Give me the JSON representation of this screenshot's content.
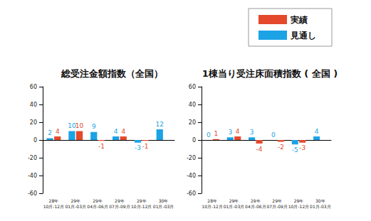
{
  "chart_data": [
    {
      "type": "bar",
      "title": "総受注金額指数（全国）",
      "categories": [
        "28年\n10月-12月",
        "29年\n01月-03月",
        "29年\n04月-06月",
        "29年\n07月-09月",
        "29年\n10月-12月",
        "30年\n01月-03月"
      ],
      "series": [
        {
          "name": "見通し",
          "color": "#1ca3e6",
          "values": [
            2,
            10,
            9,
            4,
            -3,
            12
          ]
        },
        {
          "name": "実績",
          "color": "#e5492c",
          "values": [
            4,
            10,
            -1,
            4,
            -1,
            null
          ]
        }
      ],
      "ylim": [
        -60,
        60
      ],
      "yticks": [
        -60,
        -40,
        -20,
        0,
        20,
        40,
        60
      ],
      "grid": false,
      "data_labels": true,
      "legend": "top-right"
    },
    {
      "type": "bar",
      "title": "1棟当り受注床面積指数 ( 全国 )",
      "categories": [
        "28年\n10月-12月",
        "29年\n01月-03月",
        "29年\n04月-06月",
        "29年\n07月-09月",
        "29年\n10月-12月",
        "30年\n01月-03月"
      ],
      "series": [
        {
          "name": "見通し",
          "color": "#1ca3e6",
          "values": [
            0,
            3,
            3,
            0,
            -5,
            4
          ]
        },
        {
          "name": "実績",
          "color": "#e5492c",
          "values": [
            1,
            4,
            -4,
            -2,
            -3,
            null
          ]
        }
      ],
      "ylim": [
        -60,
        60
      ],
      "yticks": [
        -60,
        -40,
        -20,
        0,
        20,
        40,
        60
      ],
      "grid": false,
      "data_labels": true
    }
  ]
}
